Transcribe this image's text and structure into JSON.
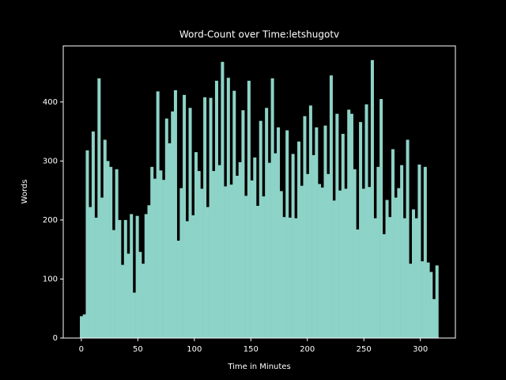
{
  "chart_data": {
    "type": "bar",
    "title": "Word-Count over Time:letshugotv",
    "xlabel": "Time in Minutes",
    "ylabel": "Words",
    "color": "#8dd3c7",
    "x": [
      0,
      2.6,
      5.2,
      7.8,
      10.4,
      13,
      15.6,
      18.2,
      20.8,
      23.4,
      26,
      28.6,
      31.2,
      33.8,
      36.4,
      39,
      41.6,
      44.2,
      46.8,
      49.4,
      52,
      54.6,
      57.2,
      59.8,
      62.4,
      65,
      67.6,
      70.2,
      72.8,
      75.4,
      78,
      80.6,
      83.2,
      85.8,
      88.4,
      91,
      93.6,
      96.2,
      98.8,
      101.4,
      104,
      106.6,
      109.2,
      111.8,
      114.4,
      117,
      119.6,
      122.2,
      124.8,
      127.4,
      130,
      132.6,
      135.2,
      137.8,
      140.4,
      143,
      145.6,
      148.2,
      150.8,
      153.4,
      156,
      158.6,
      161.2,
      163.8,
      166.4,
      169,
      171.6,
      174.2,
      176.8,
      179.4,
      182,
      184.6,
      187.2,
      189.8,
      192.4,
      195,
      197.6,
      200.2,
      202.8,
      205.4,
      208,
      210.6,
      213.2,
      215.8,
      218.4,
      221,
      223.6,
      226.2,
      228.8,
      231.4,
      234,
      236.6,
      239.2,
      241.8,
      244.4,
      247,
      249.6,
      252.2,
      254.8,
      257.4,
      260,
      262.6,
      265.2,
      267.8,
      270.4,
      273,
      275.6,
      278.2,
      280.8,
      283.4,
      286,
      288.6,
      291.2,
      293.8,
      296.4,
      299,
      301.6,
      304.2,
      306.8,
      309.4,
      312,
      314.6
    ],
    "values": [
      37,
      40,
      318,
      222,
      350,
      204,
      440,
      238,
      336,
      300,
      290,
      183,
      286,
      200,
      124,
      200,
      143,
      210,
      77,
      207,
      146,
      126,
      210,
      225,
      290,
      270,
      418,
      284,
      268,
      372,
      330,
      384,
      420,
      165,
      254,
      412,
      198,
      390,
      208,
      315,
      283,
      253,
      408,
      222,
      407,
      283,
      436,
      293,
      468,
      257,
      441,
      260,
      419,
      275,
      298,
      386,
      241,
      436,
      267,
      306,
      224,
      368,
      240,
      390,
      297,
      440,
      313,
      357,
      249,
      205,
      352,
      204,
      312,
      203,
      333,
      258,
      376,
      278,
      394,
      310,
      357,
      261,
      255,
      360,
      278,
      445,
      233,
      380,
      250,
      346,
      253,
      387,
      380,
      286,
      184,
      366,
      253,
      396,
      256,
      471,
      203,
      290,
      405,
      176,
      234,
      205,
      320,
      238,
      254,
      293,
      203,
      336,
      126,
      218,
      203,
      294,
      130,
      290,
      128,
      112,
      66,
      123
    ],
    "xlim": [
      -16,
      331
    ],
    "ylim": [
      0,
      495
    ],
    "xticks": [
      0,
      50,
      100,
      150,
      200,
      250,
      300
    ],
    "yticks": [
      0,
      100,
      200,
      300,
      400
    ]
  }
}
